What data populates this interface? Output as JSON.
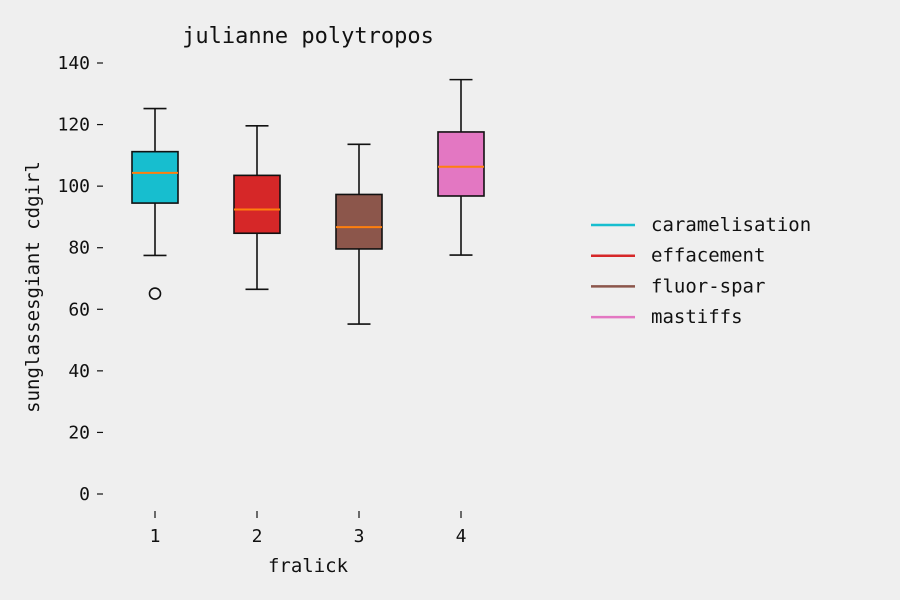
{
  "chart_data": {
    "type": "boxplot",
    "title": "julianne polytropos",
    "xlabel": "fralick",
    "ylabel": "sunglassesgiant cdgirl",
    "categories": [
      "1",
      "2",
      "3",
      "4"
    ],
    "ylim": [
      -5,
      145
    ],
    "yticks": [
      0,
      20,
      40,
      60,
      80,
      100,
      120,
      140
    ],
    "grid": false,
    "legend_position": "right",
    "median_color": "#ff7f0e",
    "series": [
      {
        "name": "caramelisation",
        "color": "#17becf",
        "whisker_low": 77.5,
        "q1": 94.5,
        "median": 104.3,
        "q3": 111.2,
        "whisker_high": 125.2,
        "outliers": [
          65.1
        ]
      },
      {
        "name": "effacement",
        "color": "#d62728",
        "whisker_low": 66.5,
        "q1": 84.7,
        "median": 92.4,
        "q3": 103.5,
        "whisker_high": 119.6,
        "outliers": []
      },
      {
        "name": "fluor-spar",
        "color": "#8c564b",
        "whisker_low": 55.2,
        "q1": 79.6,
        "median": 86.7,
        "q3": 97.3,
        "whisker_high": 113.6,
        "outliers": []
      },
      {
        "name": "mastiffs",
        "color": "#e377c2",
        "whisker_low": 77.6,
        "q1": 96.8,
        "median": 106.3,
        "q3": 117.6,
        "whisker_high": 134.6,
        "outliers": []
      }
    ]
  }
}
